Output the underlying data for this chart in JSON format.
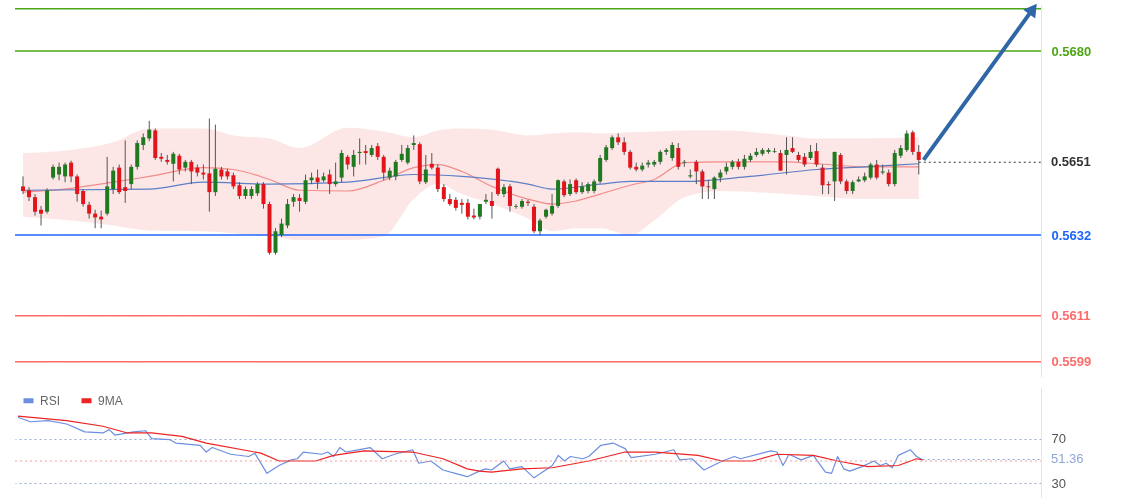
{
  "chart_data": [
    {
      "type": "candlestick",
      "tick_labels": "y",
      "categories": [
        null,
        null,
        null,
        null,
        null,
        null,
        null,
        null,
        null,
        null,
        null,
        null,
        null,
        null,
        null,
        null,
        null,
        null,
        null,
        null,
        null,
        null,
        null,
        null,
        null,
        null,
        null,
        null,
        null,
        null,
        null,
        null,
        null,
        null,
        null,
        null,
        null,
        null,
        null,
        null,
        null,
        null,
        null,
        null,
        null,
        null,
        null,
        null,
        null,
        null,
        null,
        null,
        null,
        null,
        null,
        null,
        null,
        null,
        null,
        null,
        null,
        null,
        null,
        null,
        null,
        null,
        null,
        null,
        null,
        null,
        null,
        null,
        null,
        null,
        null,
        null,
        null,
        null,
        null,
        null,
        null,
        null,
        null,
        null,
        null,
        null,
        null,
        null,
        null,
        null,
        null,
        null,
        null,
        null,
        null,
        null,
        null,
        null,
        null,
        null,
        null,
        null,
        null,
        null,
        null,
        null,
        null,
        null,
        null,
        null,
        null,
        null,
        null,
        null,
        null,
        null,
        null,
        null,
        null,
        null,
        null,
        null,
        null,
        null,
        null,
        null,
        null,
        null,
        null,
        null,
        null,
        null,
        null,
        null,
        null,
        null,
        null,
        null,
        null,
        null,
        null,
        null,
        null,
        null,
        null,
        null,
        null,
        null,
        null,
        null,
        null,
        null,
        null,
        null,
        null,
        null,
        null,
        null,
        null,
        null,
        null,
        null,
        null,
        null,
        null,
        null,
        null,
        null,
        null
      ],
      "ylim": [
        0.5595,
        0.5692
      ],
      "yticks": [
        0.5599,
        0.5611,
        0.5632,
        {
          "value": 0.568,
          "label": "0.5680"
        }
      ],
      "ohlc": [
        [
          0.56447,
          0.56473,
          0.56427,
          0.56435
        ],
        [
          0.56437,
          0.56445,
          0.56409,
          0.56419
        ],
        [
          0.56419,
          0.56427,
          0.56371,
          0.56381
        ],
        [
          0.56386,
          0.56396,
          0.56345,
          0.56376
        ],
        [
          0.56381,
          0.56442,
          0.56376,
          0.56437
        ],
        [
          0.5647,
          0.56504,
          0.56465,
          0.56498
        ],
        [
          0.56478,
          0.56509,
          0.56463,
          0.56498
        ],
        [
          0.56473,
          0.56509,
          0.56458,
          0.56504
        ],
        [
          0.56509,
          0.56514,
          0.56458,
          0.56473
        ],
        [
          0.56473,
          0.56478,
          0.56407,
          0.56427
        ],
        [
          0.56435,
          0.5644,
          0.56394,
          0.56401
        ],
        [
          0.56399,
          0.56407,
          0.56363,
          0.56376
        ],
        [
          0.56376,
          0.56386,
          0.56338,
          0.56366
        ],
        [
          0.56368,
          0.56384,
          0.56338,
          0.56361
        ],
        [
          0.56376,
          0.56524,
          0.56371,
          0.56447
        ],
        [
          0.5644,
          0.56498,
          0.56427,
          0.56488
        ],
        [
          0.56496,
          0.56504,
          0.56427,
          0.56432
        ],
        [
          0.56445,
          0.56567,
          0.56404,
          0.56435
        ],
        [
          0.56453,
          0.56504,
          0.5644,
          0.56498
        ],
        [
          0.56498,
          0.56567,
          0.56491,
          0.5656
        ],
        [
          0.56555,
          0.56585,
          0.56542,
          0.56575
        ],
        [
          0.56572,
          0.56618,
          0.56565,
          0.56595
        ],
        [
          0.56593,
          0.56598,
          0.56516,
          0.56521
        ],
        [
          0.56524,
          0.56534,
          0.56511,
          0.56519
        ],
        [
          0.56516,
          0.56529,
          0.56504,
          0.56511
        ],
        [
          0.56506,
          0.56537,
          0.5646,
          0.56532
        ],
        [
          0.56527,
          0.56532,
          0.56478,
          0.56491
        ],
        [
          0.56496,
          0.56516,
          0.56486,
          0.56511
        ],
        [
          0.56511,
          0.56516,
          0.56453,
          0.56486
        ],
        [
          0.56496,
          0.56504,
          0.56473,
          0.56483
        ],
        [
          0.56483,
          0.56504,
          0.56465,
          0.56478
        ],
        [
          0.56481,
          0.56624,
          0.56381,
          0.56432
        ],
        [
          0.56432,
          0.56608,
          0.56422,
          0.56493
        ],
        [
          0.56491,
          0.56498,
          0.56465,
          0.56473
        ],
        [
          0.56486,
          0.56493,
          0.56465,
          0.56473
        ],
        [
          0.56476,
          0.56483,
          0.5644,
          0.56447
        ],
        [
          0.5645,
          0.56458,
          0.56414,
          0.56422
        ],
        [
          0.56422,
          0.56447,
          0.56414,
          0.5644
        ],
        [
          0.56422,
          0.56447,
          0.56414,
          0.5644
        ],
        [
          0.56429,
          0.56458,
          0.56422,
          0.56453
        ],
        [
          0.56453,
          0.56458,
          0.56389,
          0.56401
        ],
        [
          0.56401,
          0.56407,
          0.56269,
          0.56274
        ],
        [
          0.56274,
          0.56338,
          0.56269,
          0.5633
        ],
        [
          0.5632,
          0.56363,
          0.56315,
          0.5635
        ],
        [
          0.56345,
          0.56414,
          0.56338,
          0.56401
        ],
        [
          0.56407,
          0.56427,
          0.56394,
          0.56419
        ],
        [
          0.56417,
          0.56427,
          0.56381,
          0.56409
        ],
        [
          0.56407,
          0.56478,
          0.56401,
          0.56463
        ],
        [
          0.56463,
          0.56483,
          0.56453,
          0.5647
        ],
        [
          0.5647,
          0.56491,
          0.5644,
          0.56458
        ],
        [
          0.56463,
          0.56483,
          0.56458,
          0.56473
        ],
        [
          0.56478,
          0.56491,
          0.56427,
          0.56453
        ],
        [
          0.56453,
          0.56509,
          0.56447,
          0.5646
        ],
        [
          0.5647,
          0.56542,
          0.56458,
          0.56534
        ],
        [
          0.56524,
          0.56529,
          0.56491,
          0.56504
        ],
        [
          0.56498,
          0.56542,
          0.56473,
          0.56529
        ],
        [
          0.56534,
          0.56572,
          0.56504,
          0.56537
        ],
        [
          0.56539,
          0.56555,
          0.56504,
          0.56534
        ],
        [
          0.56529,
          0.56555,
          0.56524,
          0.56547
        ],
        [
          0.56552,
          0.5656,
          0.56516,
          0.56524
        ],
        [
          0.56524,
          0.56529,
          0.56463,
          0.56483
        ],
        [
          0.5647,
          0.56496,
          0.56463,
          0.56488
        ],
        [
          0.56473,
          0.56516,
          0.56463,
          0.56511
        ],
        [
          0.56516,
          0.56555,
          0.56511,
          0.56532
        ],
        [
          0.56509,
          0.56555,
          0.56504,
          0.56547
        ],
        [
          0.56555,
          0.5658,
          0.56542,
          0.5656
        ],
        [
          0.56557,
          0.56562,
          0.56453,
          0.5646
        ],
        [
          0.56458,
          0.56529,
          0.56453,
          0.56491
        ],
        [
          0.56506,
          0.56534,
          0.56491,
          0.56496
        ],
        [
          0.56496,
          0.56504,
          0.56432,
          0.5644
        ],
        [
          0.56445,
          0.56453,
          0.56407,
          0.56414
        ],
        [
          0.56414,
          0.56427,
          0.56396,
          0.56401
        ],
        [
          0.56412,
          0.56419,
          0.56384,
          0.56391
        ],
        [
          0.56404,
          0.56414,
          0.56376,
          0.56399
        ],
        [
          0.56404,
          0.56414,
          0.56361,
          0.56368
        ],
        [
          0.56371,
          0.56389,
          0.56361,
          0.56366
        ],
        [
          0.56368,
          0.56401,
          0.56361,
          0.56401
        ],
        [
          0.56407,
          0.56427,
          0.56401,
          0.56412
        ],
        [
          0.56409,
          0.56432,
          0.56363,
          0.56396
        ],
        [
          0.56493,
          0.56496,
          0.56422,
          0.56427
        ],
        [
          0.56427,
          0.56453,
          0.56419,
          0.56445
        ],
        [
          0.56447,
          0.56453,
          0.56381,
          0.56396
        ],
        [
          0.56394,
          0.56401,
          0.56389,
          0.56396
        ],
        [
          0.56394,
          0.56414,
          0.56389,
          0.56409
        ],
        [
          0.56407,
          0.56412,
          0.56396,
          0.56404
        ],
        [
          0.56394,
          0.56401,
          0.56325,
          0.5633
        ],
        [
          0.5633,
          0.56363,
          0.5632,
          0.56358
        ],
        [
          0.56368,
          0.56389,
          0.56363,
          0.56386
        ],
        [
          0.56376,
          0.56427,
          0.56371,
          0.56396
        ],
        [
          0.56396,
          0.56465,
          0.56391,
          0.56463
        ],
        [
          0.5646,
          0.56465,
          0.56419,
          0.56424
        ],
        [
          0.56427,
          0.56465,
          0.56422,
          0.56453
        ],
        [
          0.56463,
          0.56468,
          0.56427,
          0.56432
        ],
        [
          0.56432,
          0.56458,
          0.56427,
          0.56447
        ],
        [
          0.56435,
          0.56458,
          0.56429,
          0.56453
        ],
        [
          0.56435,
          0.56465,
          0.56429,
          0.5646
        ],
        [
          0.5646,
          0.56529,
          0.56455,
          0.56521
        ],
        [
          0.56516,
          0.56555,
          0.56511,
          0.56549
        ],
        [
          0.56547,
          0.5658,
          0.56542,
          0.56575
        ],
        [
          0.56575,
          0.56585,
          0.56555,
          0.56562
        ],
        [
          0.56562,
          0.56575,
          0.56529,
          0.56537
        ],
        [
          0.56537,
          0.56542,
          0.56491,
          0.56496
        ],
        [
          0.56498,
          0.56509,
          0.56486,
          0.56491
        ],
        [
          0.56491,
          0.56509,
          0.56486,
          0.56501
        ],
        [
          0.56504,
          0.56516,
          0.56496,
          0.56509
        ],
        [
          0.56504,
          0.56516,
          0.56498,
          0.56511
        ],
        [
          0.56511,
          0.56542,
          0.56504,
          0.56537
        ],
        [
          0.56537,
          0.56547,
          0.56529,
          0.56542
        ],
        [
          0.56521,
          0.56562,
          0.56514,
          0.56555
        ],
        [
          0.56547,
          0.5656,
          0.56491,
          0.56498
        ],
        [
          0.56509,
          0.56516,
          0.56498,
          0.56511
        ],
        [
          0.56473,
          0.56491,
          0.56468,
          0.56476
        ],
        [
          0.56511,
          0.56516,
          0.56453,
          0.56486
        ],
        [
          0.56486,
          0.56491,
          0.56414,
          0.56447
        ],
        [
          0.56447,
          0.56463,
          0.56414,
          0.56445
        ],
        [
          0.5644,
          0.56473,
          0.56414,
          0.5647
        ],
        [
          0.5647,
          0.56491,
          0.56458,
          0.56483
        ],
        [
          0.56486,
          0.56509,
          0.56478,
          0.56498
        ],
        [
          0.56498,
          0.56516,
          0.56491,
          0.56511
        ],
        [
          0.56511,
          0.56519,
          0.56491,
          0.56498
        ],
        [
          0.56498,
          0.56529,
          0.56491,
          0.56519
        ],
        [
          0.56516,
          0.56534,
          0.56511,
          0.56527
        ],
        [
          0.56529,
          0.56547,
          0.56524,
          0.56537
        ],
        [
          0.56532,
          0.56547,
          0.56527,
          0.56542
        ],
        [
          0.56537,
          0.56547,
          0.56532,
          0.56542
        ],
        [
          0.56537,
          0.56547,
          0.56534,
          0.56539
        ],
        [
          0.56534,
          0.56542,
          0.56488,
          0.56488
        ],
        [
          0.56529,
          0.56575,
          0.56478,
          0.56542
        ],
        [
          0.56547,
          0.56575,
          0.56534,
          0.56537
        ],
        [
          0.56529,
          0.56537,
          0.56511,
          0.56516
        ],
        [
          0.56524,
          0.56534,
          0.56498,
          0.56504
        ],
        [
          0.56521,
          0.56555,
          0.56516,
          0.56537
        ],
        [
          0.56539,
          0.5656,
          0.56498,
          0.56504
        ],
        [
          0.56496,
          0.56504,
          0.56427,
          0.5645
        ],
        [
          0.56453,
          0.5646,
          0.56427,
          0.5645
        ],
        [
          0.5646,
          0.56537,
          0.56409,
          0.56537
        ],
        [
          0.56529,
          0.56534,
          0.56453,
          0.5646
        ],
        [
          0.5646,
          0.56465,
          0.56427,
          0.56435
        ],
        [
          0.56435,
          0.56463,
          0.56427,
          0.56458
        ],
        [
          0.5646,
          0.56473,
          0.56458,
          0.56465
        ],
        [
          0.56463,
          0.56483,
          0.56458,
          0.56473
        ],
        [
          0.5647,
          0.56509,
          0.56465,
          0.56504
        ],
        [
          0.56504,
          0.56516,
          0.56465,
          0.5647
        ],
        [
          0.56483,
          0.56504,
          0.56478,
          0.56486
        ],
        [
          0.56483,
          0.56491,
          0.56447,
          0.56453
        ],
        [
          0.56453,
          0.56542,
          0.56447,
          0.56534
        ],
        [
          0.56527,
          0.56555,
          0.56521,
          0.56547
        ],
        [
          0.56542,
          0.56593,
          0.56537,
          0.56585
        ],
        [
          0.56588,
          0.56593,
          0.56529,
          0.56537
        ],
        [
          0.56537,
          0.56555,
          0.56478,
          0.56516
        ],
        null,
        null,
        null,
        null,
        null,
        null,
        null,
        null,
        null,
        null,
        null,
        null,
        null,
        null,
        null,
        null,
        null,
        null,
        null
      ],
      "series": [
        {
          "type": "line",
          "color": "#f28b8b",
          "values": [
            0.56432,
            null,
            null,
            null,
            null,
            null,
            null,
            null,
            0.56442,
            null,
            null,
            null,
            null,
            null,
            null,
            0.56458,
            null,
            null,
            null,
            null,
            null,
            0.56473,
            null,
            null,
            null,
            null,
            null,
            null,
            null,
            null,
            0.56496,
            null,
            null,
            null,
            null,
            0.56491,
            null,
            null,
            null,
            null,
            null,
            0.56465,
            null,
            null,
            null,
            null,
            0.56437,
            null,
            null,
            null,
            null,
            null,
            null,
            null,
            0.56435,
            null,
            null,
            null,
            null,
            null,
            0.56463,
            null,
            null,
            null,
            null,
            0.56496,
            null,
            null,
            null,
            0.56504,
            null,
            null,
            null,
            0.56486,
            null,
            null,
            null,
            null,
            0.56447,
            null,
            null,
            null,
            null,
            null,
            0.56414,
            null,
            null,
            null,
            0.56401,
            null,
            null,
            null,
            0.56409,
            null,
            null,
            null,
            0.56427,
            null,
            null,
            null,
            null,
            0.5645,
            null,
            null,
            null,
            0.56465,
            null,
            null,
            null,
            null,
            0.56509,
            null,
            null,
            null,
            null,
            null,
            0.56511,
            null,
            null,
            null,
            null,
            null,
            null,
            null,
            null,
            null,
            null,
            0.56511,
            null,
            null,
            null,
            null,
            0.56506,
            null,
            null,
            null,
            null,
            null,
            null,
            null,
            0.56498,
            null,
            null,
            null,
            null,
            null,
            null,
            null,
            null,
            0.56498,
            null,
            null,
            null,
            null,
            null,
            null,
            null,
            null,
            null,
            null,
            null,
            null,
            null,
            null,
            null,
            null,
            null,
            null,
            null
          ],
          "upper": [
            0.56534,
            null,
            null,
            null,
            null,
            null,
            null,
            null,
            0.56542,
            null,
            null,
            null,
            null,
            null,
            null,
            0.56562,
            null,
            null,
            null,
            null,
            null,
            0.56598,
            null,
            null,
            null,
            null,
            null,
            null,
            null,
            null,
            0.56598,
            null,
            null,
            null,
            null,
            0.5658,
            null,
            null,
            null,
            null,
            null,
            0.56572,
            null,
            null,
            null,
            null,
            0.56547,
            null,
            null,
            null,
            null,
            null,
            null,
            null,
            0.566,
            null,
            null,
            null,
            null,
            null,
            0.5659,
            null,
            null,
            null,
            null,
            0.56575,
            null,
            null,
            null,
            0.56593,
            null,
            null,
            null,
            0.56598,
            null,
            null,
            null,
            null,
            0.56595,
            null,
            null,
            null,
            null,
            null,
            0.5658,
            null,
            null,
            null,
            0.56585,
            null,
            null,
            null,
            0.56588,
            null,
            null,
            null,
            0.56585,
            null,
            null,
            null,
            null,
            0.56588,
            null,
            null,
            null,
            0.5659,
            null,
            null,
            null,
            null,
            0.56593,
            null,
            null,
            null,
            null,
            null,
            0.56593,
            null,
            null,
            null,
            null,
            null,
            null,
            null,
            null,
            null,
            null,
            0.5658,
            null,
            null,
            null,
            null,
            0.56572,
            null,
            null,
            null,
            null,
            null,
            null,
            null,
            0.56572,
            null,
            null,
            null,
            null,
            null,
            null,
            null,
            null,
            0.56575,
            null,
            null,
            null,
            null,
            null,
            null,
            null,
            null,
            null,
            null,
            null,
            null,
            null,
            null,
            null,
            null,
            null,
            null,
            null
          ],
          "lower": [
            0.56368,
            null,
            null,
            null,
            null,
            null,
            null,
            null,
            0.56358,
            null,
            null,
            null,
            null,
            null,
            null,
            0.56345,
            null,
            null,
            null,
            null,
            null,
            0.56332,
            null,
            null,
            null,
            null,
            null,
            null,
            null,
            null,
            0.5633,
            null,
            null,
            null,
            null,
            0.56325,
            null,
            null,
            null,
            null,
            null,
            0.56317,
            null,
            null,
            null,
            null,
            0.56307,
            null,
            null,
            null,
            null,
            null,
            null,
            null,
            0.56307,
            null,
            null,
            null,
            null,
            null,
            0.56317,
            null,
            null,
            null,
            null,
            0.56414,
            null,
            null,
            null,
            0.56453,
            null,
            null,
            null,
            0.56427,
            null,
            null,
            null,
            null,
            0.56401,
            null,
            null,
            null,
            null,
            null,
            0.56363,
            null,
            null,
            null,
            0.5633,
            null,
            null,
            null,
            0.56338,
            null,
            null,
            null,
            0.56338,
            null,
            null,
            null,
            null,
            0.5632,
            null,
            null,
            null,
            0.56358,
            null,
            null,
            null,
            null,
            0.56419,
            null,
            null,
            null,
            null,
            null,
            0.56435,
            null,
            null,
            null,
            null,
            null,
            null,
            null,
            null,
            null,
            null,
            0.56427,
            null,
            null,
            null,
            null,
            0.56422,
            null,
            null,
            null,
            null,
            null,
            null,
            null,
            0.56414,
            null,
            null,
            null,
            null,
            null,
            null,
            null,
            null,
            0.56414,
            null,
            null,
            null,
            null,
            null,
            null,
            null,
            null,
            null,
            null,
            null,
            null,
            null,
            null,
            null,
            null,
            null,
            null,
            null
          ]
        },
        {
          "type": "line",
          "color": "#5b7fc6",
          "values": [
            0.56437,
            null,
            null,
            null,
            null,
            null,
            null,
            null,
            null,
            null,
            null,
            null,
            null,
            null,
            null,
            null,
            null,
            null,
            null,
            null,
            null,
            0.5644,
            null,
            null,
            null,
            null,
            null,
            null,
            null,
            null,
            0.56458,
            null,
            null,
            null,
            null,
            null,
            null,
            null,
            null,
            null,
            null,
            0.56453,
            null,
            null,
            null,
            null,
            null,
            null,
            null,
            null,
            null,
            null,
            null,
            null,
            0.56458,
            null,
            null,
            null,
            null,
            null,
            null,
            null,
            null,
            null,
            null,
            0.56478,
            null,
            null,
            null,
            null,
            null,
            null,
            null,
            0.56473,
            null,
            null,
            null,
            null,
            null,
            null,
            null,
            null,
            null,
            null,
            0.56453,
            null,
            null,
            null,
            0.5644,
            null,
            null,
            null,
            null,
            null,
            null,
            null,
            0.56453,
            null,
            null,
            null,
            null,
            0.5646,
            null,
            null,
            null,
            null,
            null,
            null,
            null,
            null,
            0.5646,
            null,
            null,
            null,
            null,
            null,
            null,
            null,
            null,
            null,
            null,
            0.56473,
            null,
            null,
            null,
            null,
            null,
            null,
            null,
            null,
            null,
            null,
            0.56491,
            null,
            null,
            null,
            null,
            null,
            null,
            null,
            0.56498,
            null,
            null,
            null,
            null,
            null,
            null,
            null,
            null,
            0.56506,
            null,
            null,
            null,
            null,
            null,
            null,
            null,
            null,
            null,
            null,
            null,
            null,
            null,
            null,
            null,
            null,
            null,
            null,
            null
          ]
        }
      ],
      "ref_lines": [
        {
          "axis": "y",
          "value": 0.5691,
          "color": "#4ca614"
        },
        {
          "axis": "y",
          "value": 0.568,
          "color": "#4ca614"
        },
        {
          "axis": "y",
          "value": 0.5651,
          "label": "0.5651",
          "color": "#333333",
          "line_style": "dotted"
        },
        {
          "axis": "y",
          "value": 0.5632,
          "color": "#1f66ff"
        },
        {
          "axis": "y",
          "value": 0.5611,
          "color": "#ff6b6b"
        },
        {
          "axis": "y",
          "value": 0.5599,
          "color": "#ff6b6b"
        }
      ]
    },
    {
      "type": "line",
      "tick_labels": "y",
      "ylim": [
        17,
        116
      ],
      "categories": [
        null,
        null,
        null,
        null,
        null,
        null,
        null,
        null,
        null,
        null,
        null,
        null,
        null,
        null,
        null,
        null,
        null,
        null,
        null,
        null,
        null,
        null,
        null,
        null,
        null,
        null,
        null,
        null,
        null,
        null,
        null,
        null,
        null,
        null,
        null,
        null,
        null,
        null,
        null,
        null,
        null,
        null,
        null,
        null,
        null,
        null,
        null,
        null,
        null,
        null,
        null,
        null,
        null,
        null,
        null,
        null,
        null,
        null,
        null,
        null,
        null,
        null,
        null,
        null,
        null,
        null,
        null,
        null,
        null,
        null,
        null,
        null,
        null,
        null,
        null,
        null,
        null,
        null,
        null,
        null,
        null,
        null,
        null,
        null,
        null,
        null,
        null,
        null,
        null,
        null,
        null,
        null,
        null,
        null,
        null,
        null,
        null,
        null,
        null,
        null,
        null,
        null,
        null,
        null,
        null,
        null,
        null,
        null,
        null,
        null,
        null,
        null,
        null,
        null,
        null,
        null,
        null,
        null,
        null,
        null,
        null,
        null,
        null,
        null,
        null,
        null,
        null,
        null,
        null,
        null,
        null,
        null,
        null,
        null,
        null,
        null,
        null,
        null,
        null,
        null,
        null,
        null,
        null,
        null,
        null,
        null,
        null,
        null,
        null,
        null,
        null,
        null,
        null,
        null,
        null,
        null,
        null,
        null,
        null,
        null,
        null,
        null,
        null,
        null,
        null,
        null,
        null,
        null,
        null
      ],
      "yticks": [
        30,
        70
      ],
      "grid": "y",
      "legend": "top left",
      "series": [
        {
          "name": "RSI",
          "color": "#6d8fe0",
          "values": [
            89,
            null,
            85,
            null,
            null,
            86,
            null,
            null,
            83,
            null,
            null,
            76,
            null,
            null,
            75,
            78,
            73,
            null,
            null,
            76,
            null,
            77,
            70,
            null,
            null,
            69,
            66,
            null,
            null,
            null,
            64,
            58,
            62,
            null,
            null,
            56,
            null,
            null,
            54,
            57,
            null,
            39,
            null,
            46,
            null,
            51,
            52,
            58,
            null,
            null,
            56,
            58,
            54,
            62,
            58,
            null,
            60,
            null,
            62,
            null,
            52,
            null,
            56,
            null,
            null,
            60,
            48,
            null,
            50,
            null,
            42,
            null,
            39,
            null,
            36,
            null,
            41,
            43,
            42,
            null,
            50,
            43,
            null,
            45,
            null,
            35,
            null,
            null,
            46,
            55,
            50,
            54,
            null,
            52,
            54,
            null,
            64,
            null,
            66,
            null,
            61,
            53,
            null,
            null,
            null,
            56,
            null,
            null,
            60,
            51,
            null,
            52,
            null,
            42,
            null,
            null,
            50,
            null,
            54,
            52,
            null,
            null,
            null,
            null,
            59,
            58,
            46,
            56,
            null,
            51,
            null,
            55,
            null,
            40,
            39,
            54,
            43,
            41,
            null,
            45,
            null,
            50,
            46,
            48,
            44,
            55,
            null,
            60,
            54,
            51,
            null,
            null,
            null,
            null,
            null,
            null,
            null,
            null,
            null,
            null,
            null,
            null,
            null,
            null,
            null,
            null,
            null,
            null,
            null
          ]
        },
        {
          "name": "9MA",
          "color": "#ee2222",
          "values": [
            90,
            null,
            null,
            null,
            null,
            null,
            null,
            null,
            86,
            null,
            null,
            null,
            null,
            null,
            81,
            null,
            null,
            null,
            75,
            null,
            null,
            null,
            75,
            null,
            null,
            null,
            null,
            72,
            null,
            null,
            null,
            66,
            null,
            null,
            null,
            null,
            null,
            null,
            null,
            null,
            57,
            null,
            null,
            50,
            null,
            null,
            50,
            null,
            null,
            50,
            null,
            null,
            55,
            null,
            null,
            null,
            null,
            59,
            null,
            null,
            null,
            null,
            null,
            null,
            null,
            58,
            null,
            null,
            null,
            null,
            52,
            null,
            null,
            null,
            43,
            null,
            41,
            null,
            40,
            null,
            null,
            null,
            null,
            43,
            null,
            null,
            null,
            null,
            44,
            null,
            null,
            null,
            null,
            null,
            50,
            null,
            null,
            null,
            null,
            null,
            58,
            null,
            null,
            null,
            null,
            58,
            null,
            null,
            null,
            null,
            null,
            null,
            55,
            null,
            null,
            null,
            50,
            null,
            null,
            null,
            null,
            50,
            null,
            null,
            null,
            56,
            null,
            null,
            null,
            null,
            null,
            55,
            null,
            null,
            null,
            50,
            null,
            null,
            null,
            null,
            45,
            null,
            null,
            null,
            null,
            46,
            null,
            null,
            52,
            51,
            null,
            null,
            null,
            null,
            null,
            null,
            null,
            null,
            null,
            null,
            null,
            null,
            null,
            null,
            null,
            null,
            null,
            null,
            null
          ]
        }
      ],
      "ref_lines": [
        {
          "axis": "y",
          "value": 50,
          "color": "#f2a0a0",
          "line_style": "dotted"
        },
        {
          "axis": "y",
          "value": 51.36,
          "label": "51.36",
          "color": "#8fa6d8",
          "line_style": "dotted"
        }
      ]
    }
  ]
}
